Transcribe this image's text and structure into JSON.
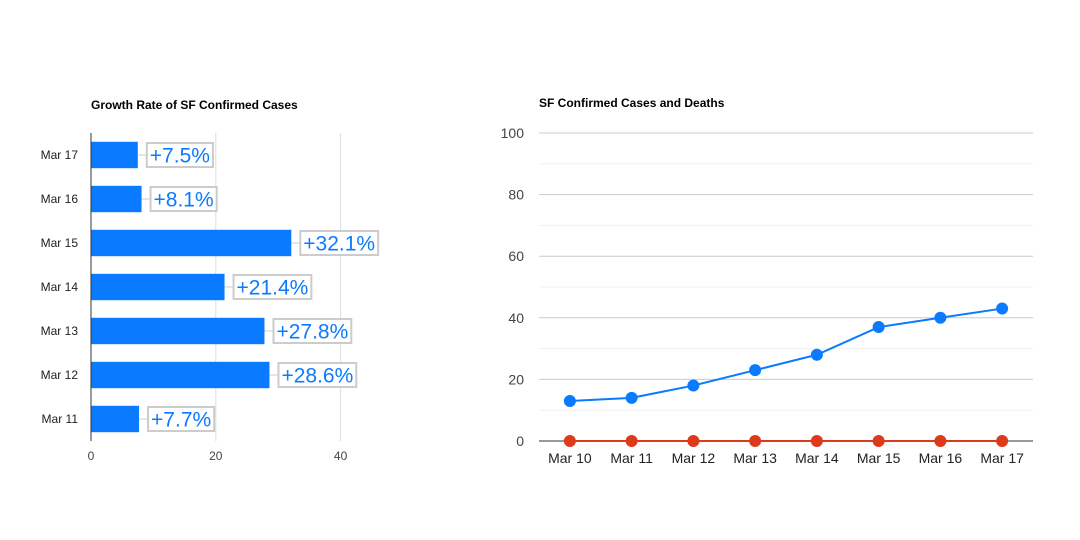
{
  "chart_data": [
    {
      "type": "bar",
      "orientation": "horizontal",
      "title": "Growth Rate of SF Confirmed Cases",
      "categories": [
        "Mar 17",
        "Mar 16",
        "Mar 15",
        "Mar 14",
        "Mar 13",
        "Mar 12",
        "Mar 11"
      ],
      "values": [
        7.5,
        8.1,
        32.1,
        21.4,
        27.8,
        28.6,
        7.7
      ],
      "data_labels": [
        "+7.5%",
        "+8.1%",
        "+32.1%",
        "+21.4%",
        "+27.8%",
        "+28.6%",
        "+7.7%"
      ],
      "xlim": [
        0,
        50
      ],
      "xticks": [
        0,
        20,
        40
      ],
      "grid": true,
      "legend": "none",
      "colors": {
        "bar": "#0a7bff",
        "label_text": "#0a7bff",
        "label_border": "#cccccc"
      }
    },
    {
      "type": "line",
      "title": "SF Confirmed Cases and Deaths",
      "x": [
        "Mar 10",
        "Mar 11",
        "Mar 12",
        "Mar 13",
        "Mar 14",
        "Mar 15",
        "Mar 16",
        "Mar 17"
      ],
      "series": [
        {
          "values": [
            13,
            14,
            18,
            23,
            28,
            37,
            40,
            43
          ],
          "color": "#0a7bff"
        },
        {
          "values": [
            0,
            0,
            0,
            0,
            0,
            0,
            0,
            0
          ],
          "color": "#dd3a1b"
        }
      ],
      "ylim": [
        0,
        100
      ],
      "yticks": [
        0,
        20,
        40,
        60,
        80,
        100
      ],
      "grid": true,
      "legend": "none"
    }
  ]
}
